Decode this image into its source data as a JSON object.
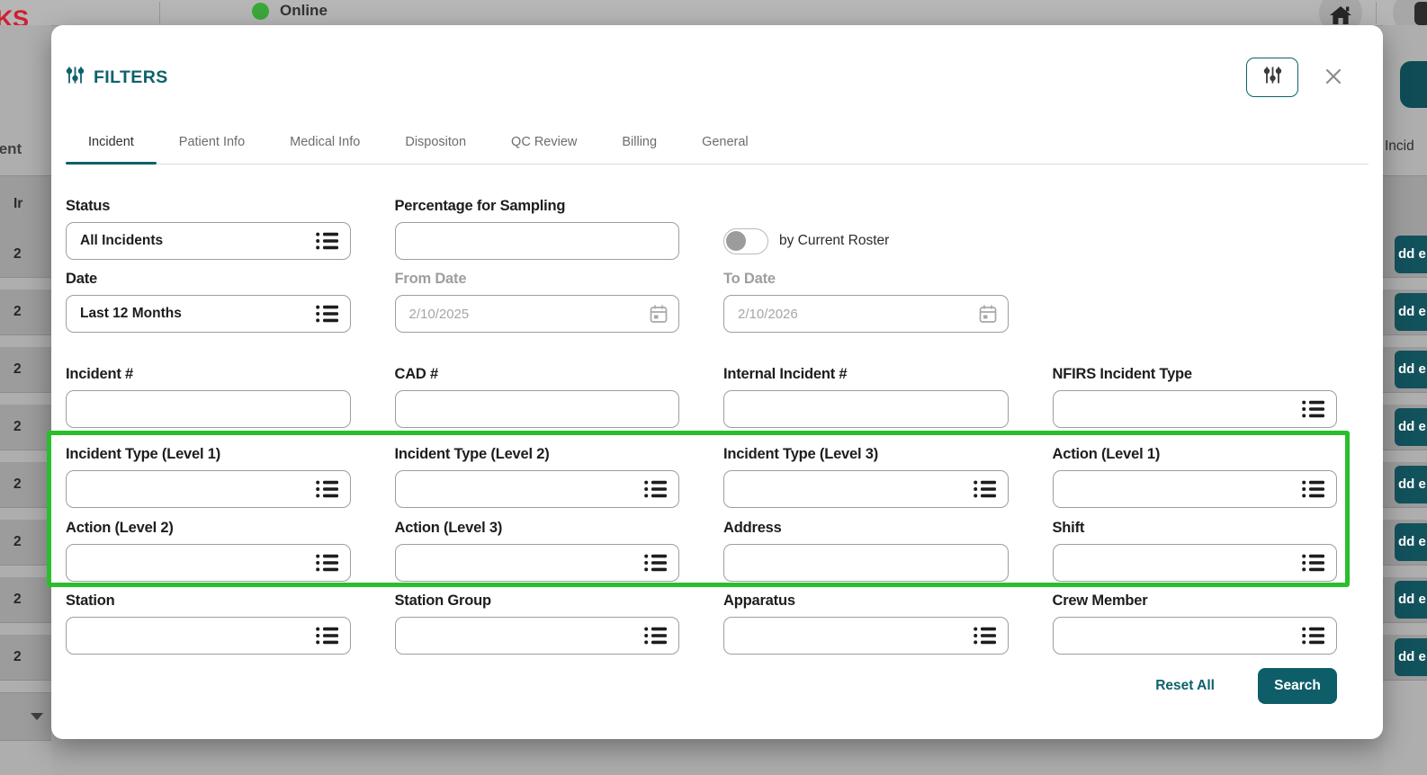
{
  "colors": {
    "accent_teal": "#0e616c",
    "highlight_green": "#2abe2d",
    "logo_red": "#cf2030",
    "online_green": "#3aa83a",
    "background_button_teal": "#12525c"
  },
  "topbar": {
    "logo_partial": "KS",
    "status_label": "Online"
  },
  "background": {
    "left_header_partial": "lent",
    "left_column_header": "Ir",
    "left_rows": [
      "2",
      "2",
      "2",
      "2",
      "2",
      "2",
      "2",
      "2"
    ],
    "right_tab_partial": "Incid",
    "right_buttons": [
      "dd e",
      "dd e",
      "dd e",
      "dd e",
      "dd e",
      "dd e",
      "dd e",
      "dd e"
    ]
  },
  "modal": {
    "title": "FILTERS",
    "tabs": [
      {
        "label": "Incident",
        "active": true
      },
      {
        "label": "Patient Info",
        "active": false
      },
      {
        "label": "Medical Info",
        "active": false
      },
      {
        "label": "Dispositon",
        "active": false
      },
      {
        "label": "QC Review",
        "active": false
      },
      {
        "label": "Billing",
        "active": false
      },
      {
        "label": "General",
        "active": false
      }
    ],
    "form": {
      "rows": [
        {
          "highlight": false,
          "cells": [
            {
              "label": "Status",
              "value": "All Incidents",
              "icon": "list"
            },
            {
              "label": "Percentage for Sampling",
              "value": ""
            },
            {
              "type": "toggle",
              "label": "by Current Roster",
              "on": false
            },
            null
          ]
        },
        {
          "highlight": false,
          "cells": [
            {
              "label": "Date",
              "value": "Last 12 Months",
              "icon": "list"
            },
            {
              "label": "From Date",
              "value": "2/10/2025",
              "icon": "calendar",
              "muted": true
            },
            {
              "label": "To Date",
              "value": "2/10/2026",
              "icon": "calendar",
              "muted": true
            },
            null
          ]
        },
        {
          "highlight": false,
          "cells": [
            {
              "label": "Incident #",
              "value": ""
            },
            {
              "label": "CAD #",
              "value": ""
            },
            {
              "label": "Internal Incident #",
              "value": ""
            },
            {
              "label": "NFIRS Incident Type",
              "value": "",
              "icon": "list"
            }
          ]
        },
        {
          "highlight": true,
          "cells": [
            {
              "label": "Incident Type (Level 1)",
              "value": "",
              "icon": "list"
            },
            {
              "label": "Incident Type (Level 2)",
              "value": "",
              "icon": "list"
            },
            {
              "label": "Incident Type (Level 3)",
              "value": "",
              "icon": "list"
            },
            {
              "label": "Action (Level 1)",
              "value": "",
              "icon": "list"
            }
          ]
        },
        {
          "highlight": true,
          "cells": [
            {
              "label": "Action (Level 2)",
              "value": "",
              "icon": "list"
            },
            {
              "label": "Action (Level 3)",
              "value": "",
              "icon": "list"
            },
            {
              "label": "Address",
              "value": ""
            },
            {
              "label": "Shift",
              "value": "",
              "icon": "list"
            }
          ]
        },
        {
          "highlight": false,
          "cells": [
            {
              "label": "Station",
              "value": "",
              "icon": "list"
            },
            {
              "label": "Station Group",
              "value": "",
              "icon": "list"
            },
            {
              "label": "Apparatus",
              "value": "",
              "icon": "list"
            },
            {
              "label": "Crew Member",
              "value": "",
              "icon": "list"
            }
          ]
        }
      ]
    },
    "footer": {
      "reset_label": "Reset All",
      "search_label": "Search"
    }
  }
}
